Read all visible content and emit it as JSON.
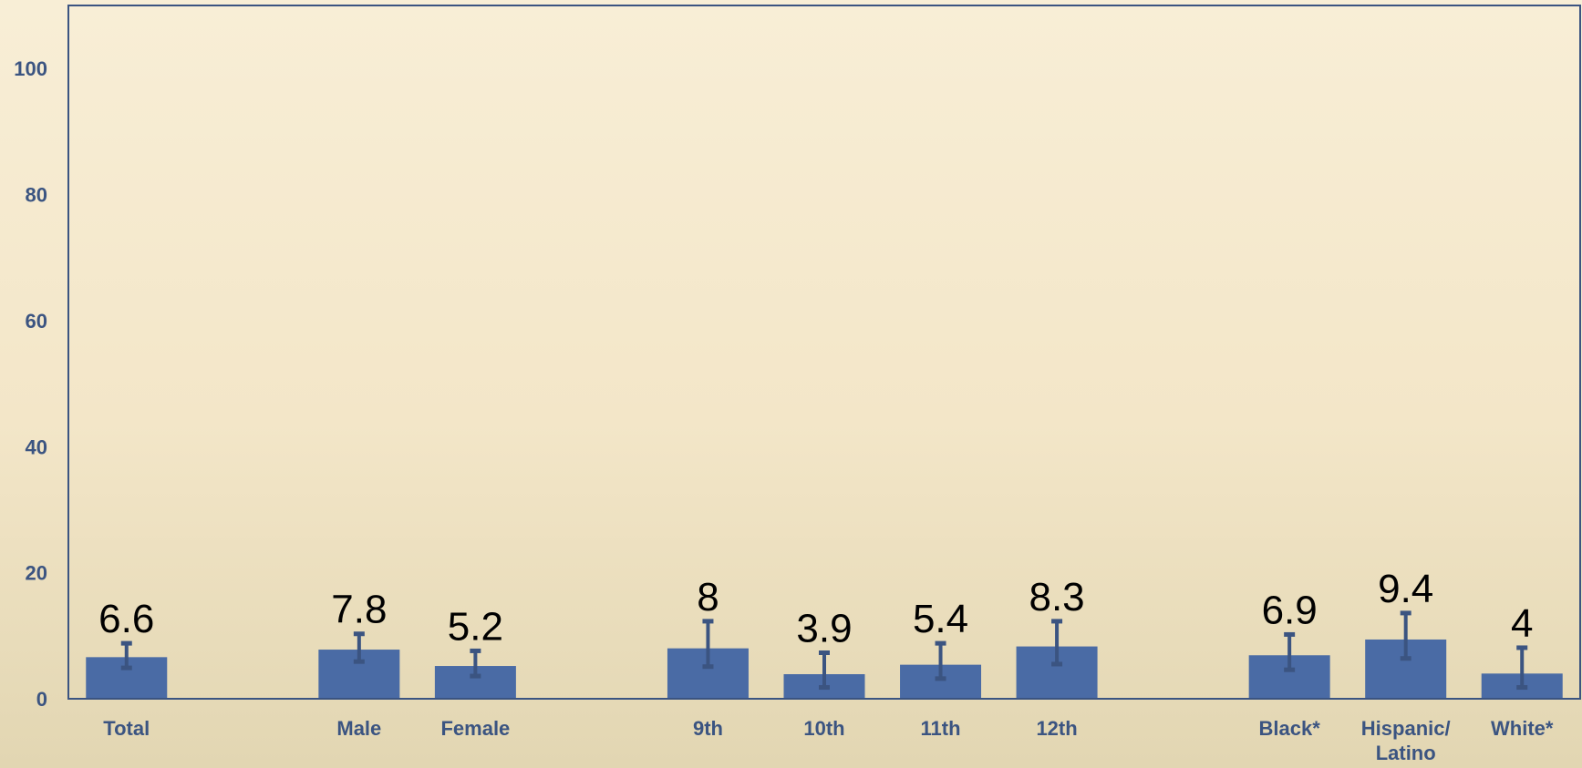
{
  "chart_data": {
    "type": "bar",
    "categories": [
      "Total",
      "",
      "Male",
      "Female",
      "",
      "9th",
      "10th",
      "11th",
      "12th",
      "",
      "Black*",
      "Hispanic/\nLatino",
      "White*"
    ],
    "values": [
      6.6,
      null,
      7.8,
      5.2,
      null,
      8,
      3.9,
      5.4,
      8.3,
      null,
      6.9,
      9.4,
      4
    ],
    "data_labels": [
      "6.6",
      "",
      "7.8",
      "5.2",
      "",
      "8",
      "3.9",
      "5.4",
      "8.3",
      "",
      "6.9",
      "9.4",
      "4"
    ],
    "error_low": [
      4.9,
      null,
      5.9,
      3.6,
      null,
      5.1,
      1.8,
      3.2,
      5.5,
      null,
      4.6,
      6.4,
      1.8
    ],
    "error_high": [
      8.8,
      null,
      10.3,
      7.6,
      null,
      12.3,
      7.3,
      8.8,
      12.3,
      null,
      10.2,
      13.6,
      8.1
    ],
    "ylim": [
      0,
      110
    ],
    "yticks": [
      0,
      20,
      40,
      60,
      80,
      100
    ],
    "grid": false,
    "bar_color": "#4a6ba5",
    "error_bar_color": "#3b5481",
    "axis_color": "#3b5481"
  }
}
